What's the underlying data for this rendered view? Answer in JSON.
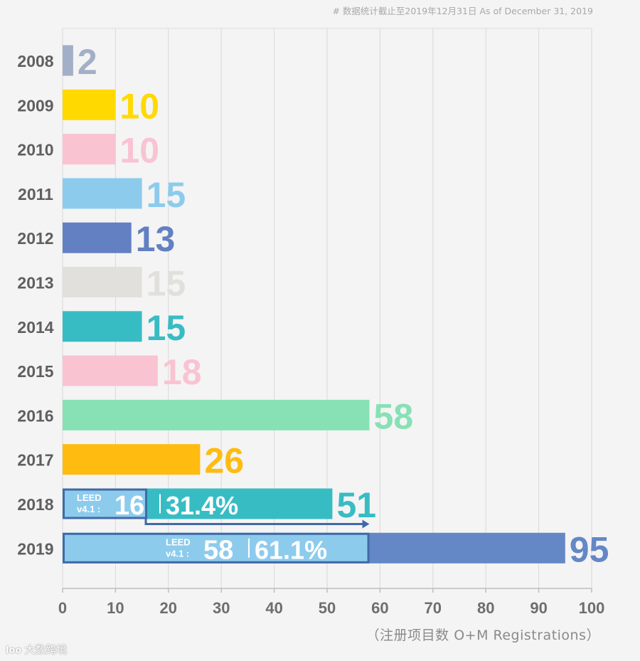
{
  "header": {
    "note": "# 数据统计截止至2019年12月31日 As of December 31, 2019"
  },
  "footer": {
    "watermark_icon": "loo",
    "watermark": "大数跨境"
  },
  "chart_data": {
    "type": "bar",
    "orientation": "horizontal",
    "categories": [
      "2008",
      "2009",
      "2010",
      "2011",
      "2012",
      "2013",
      "2014",
      "2015",
      "2016",
      "2017",
      "2018",
      "2019"
    ],
    "values": [
      2,
      10,
      10,
      15,
      13,
      15,
      15,
      18,
      58,
      26,
      51,
      95
    ],
    "value_labels": [
      "2",
      "10",
      "10",
      "15",
      "13",
      "15",
      "15",
      "18",
      "58",
      "26",
      "51",
      "95"
    ],
    "colors": [
      "#a3afc7",
      "#ffd900",
      "#f9c3d2",
      "#8dcbed",
      "#6280c2",
      "#e1e0dc",
      "#38bcc4",
      "#f9c3d2",
      "#87e1b5",
      "#ffbb10",
      "#38bcc4",
      "#6488c6"
    ],
    "xlim": [
      0,
      100
    ],
    "xticks": [
      "0",
      "10",
      "20",
      "30",
      "40",
      "50",
      "60",
      "70",
      "80",
      "90",
      "100"
    ],
    "xlabel": "（注册项目数 O+M Registrations）",
    "grid": true,
    "annotations": [
      {
        "year": "2018",
        "label": "LEED",
        "label2": "v4.1 :",
        "count": 16,
        "count_text": "16",
        "share": "31.4%",
        "color": "#8dcbed",
        "frame_color": "#3f6aa6"
      },
      {
        "year": "2019",
        "label": "LEED",
        "label2": "v4.1 :",
        "count": 58,
        "count_text": "58",
        "share": "61.1%",
        "color": "#8dcbed",
        "frame_color": "#3f6aa6"
      }
    ]
  }
}
